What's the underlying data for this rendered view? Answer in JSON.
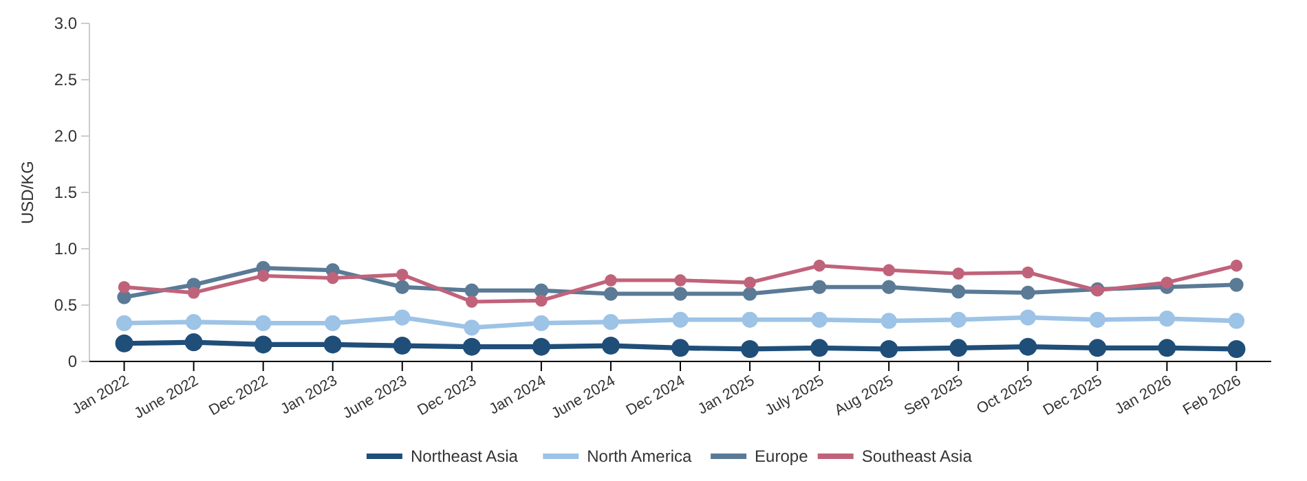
{
  "chart_data": {
    "type": "line",
    "ylabel": "USD/KG",
    "categories": [
      "Jan 2022",
      "June 2022",
      "Dec 2022",
      "Jan 2023",
      "June 2023",
      "Dec 2023",
      "Jan 2024",
      "June 2024",
      "Dec 2024",
      "Jan 2025",
      "July 2025",
      "Aug 2025",
      "Sep 2025",
      "Oct 2025",
      "Dec 2025",
      "Jan 2026",
      "Feb 2026"
    ],
    "series": [
      {
        "name": "Northeast Asia",
        "color": "#1f4e79",
        "values": [
          0.16,
          0.17,
          0.15,
          0.15,
          0.14,
          0.13,
          0.13,
          0.14,
          0.12,
          0.11,
          0.12,
          0.11,
          0.12,
          0.13,
          0.12,
          0.12,
          0.11
        ]
      },
      {
        "name": "North America",
        "color": "#9dc3e6",
        "values": [
          0.34,
          0.35,
          0.34,
          0.34,
          0.39,
          0.3,
          0.34,
          0.35,
          0.37,
          0.37,
          0.37,
          0.36,
          0.37,
          0.39,
          0.37,
          0.38,
          0.36
        ]
      },
      {
        "name": "Europe",
        "color": "#5a7a96",
        "values": [
          0.57,
          0.68,
          0.83,
          0.81,
          0.66,
          0.63,
          0.63,
          0.6,
          0.6,
          0.6,
          0.66,
          0.66,
          0.62,
          0.61,
          0.64,
          0.66,
          0.68
        ]
      },
      {
        "name": "Southeast Asia",
        "color": "#c0637a",
        "values": [
          0.66,
          0.61,
          0.76,
          0.74,
          0.77,
          0.53,
          0.54,
          0.72,
          0.72,
          0.7,
          0.85,
          0.81,
          0.78,
          0.79,
          0.63,
          0.7,
          0.85
        ]
      }
    ],
    "ylim": [
      0,
      3
    ],
    "yticks": [
      0,
      0.5,
      {
        "value": 1,
        "label": "1.0"
      },
      1.5,
      {
        "value": 2,
        "label": "2.0"
      },
      2.5,
      {
        "value": 3,
        "label": "3.0"
      }
    ],
    "grid": false,
    "legend": "bottom",
    "marker": "circle",
    "line_style": "solid"
  }
}
